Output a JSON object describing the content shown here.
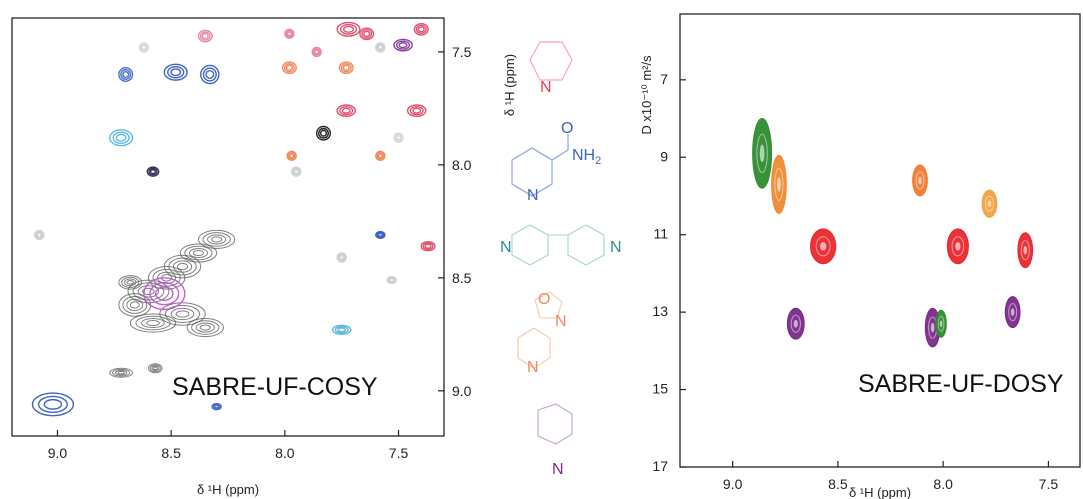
{
  "chart_data": [
    {
      "type": "contour-2d",
      "title": "SABRE-UF-COSY",
      "xlabel": "δ ¹H (ppm)",
      "ylabel": "δ ¹H (ppm)",
      "xlim": [
        9.2,
        7.3
      ],
      "ylim": [
        7.35,
        9.2
      ],
      "x_ticks": [
        9.0,
        8.5,
        8.0,
        7.5
      ],
      "y_ticks": [
        7.5,
        8.0,
        8.5,
        9.0
      ],
      "x_tick_labels": [
        "9.0",
        "8.5",
        "8.0",
        "7.5"
      ],
      "y_tick_labels": [
        "7.5",
        "8.0",
        "8.5",
        "9.0"
      ],
      "peaks": [
        {
          "x": 8.7,
          "y": 7.6,
          "color": "#4a6fc4",
          "rx": 0.03,
          "ry": 0.03
        },
        {
          "x": 8.48,
          "y": 7.59,
          "color": "#3f63c2",
          "rx": 0.05,
          "ry": 0.035
        },
        {
          "x": 8.33,
          "y": 7.6,
          "color": "#3f63c2",
          "rx": 0.04,
          "ry": 0.04
        },
        {
          "x": 8.62,
          "y": 7.48,
          "color": "#d9d9d9",
          "rx": 0.02,
          "ry": 0.02
        },
        {
          "x": 8.35,
          "y": 7.43,
          "color": "#e889a4",
          "rx": 0.03,
          "ry": 0.025
        },
        {
          "x": 7.98,
          "y": 7.42,
          "color": "#e889a4",
          "rx": 0.02,
          "ry": 0.02
        },
        {
          "x": 7.86,
          "y": 7.5,
          "color": "#e889a4",
          "rx": 0.02,
          "ry": 0.02
        },
        {
          "x": 7.72,
          "y": 7.4,
          "color": "#e0506e",
          "rx": 0.05,
          "ry": 0.03
        },
        {
          "x": 7.64,
          "y": 7.42,
          "color": "#e0506e",
          "rx": 0.03,
          "ry": 0.025
        },
        {
          "x": 7.58,
          "y": 7.48,
          "color": "#cfcfcf",
          "rx": 0.02,
          "ry": 0.02
        },
        {
          "x": 7.48,
          "y": 7.47,
          "color": "#8a3fa0",
          "rx": 0.04,
          "ry": 0.025
        },
        {
          "x": 7.4,
          "y": 7.4,
          "color": "#e0506e",
          "rx": 0.03,
          "ry": 0.025
        },
        {
          "x": 7.98,
          "y": 7.57,
          "color": "#f08a5d",
          "rx": 0.03,
          "ry": 0.025
        },
        {
          "x": 7.73,
          "y": 7.57,
          "color": "#f08a5d",
          "rx": 0.03,
          "ry": 0.025
        },
        {
          "x": 7.73,
          "y": 7.76,
          "color": "#e0506e",
          "rx": 0.04,
          "ry": 0.025
        },
        {
          "x": 7.42,
          "y": 7.76,
          "color": "#e0506e",
          "rx": 0.04,
          "ry": 0.025
        },
        {
          "x": 8.72,
          "y": 7.88,
          "color": "#5fb8e0",
          "rx": 0.05,
          "ry": 0.035
        },
        {
          "x": 7.83,
          "y": 7.86,
          "color": "#222222",
          "rx": 0.03,
          "ry": 0.03
        },
        {
          "x": 7.97,
          "y": 7.96,
          "color": "#f08a5d",
          "rx": 0.02,
          "ry": 0.02
        },
        {
          "x": 7.58,
          "y": 7.96,
          "color": "#f08a5d",
          "rx": 0.02,
          "ry": 0.02
        },
        {
          "x": 7.5,
          "y": 7.88,
          "color": "#d9d9d9",
          "rx": 0.02,
          "ry": 0.02
        },
        {
          "x": 8.58,
          "y": 8.03,
          "color": "#333355",
          "rx": 0.025,
          "ry": 0.02
        },
        {
          "x": 7.95,
          "y": 8.03,
          "color": "#d0d0d0",
          "rx": 0.02,
          "ry": 0.02
        },
        {
          "x": 9.08,
          "y": 8.31,
          "color": "#cfcfcf",
          "rx": 0.02,
          "ry": 0.02
        },
        {
          "x": 7.58,
          "y": 8.31,
          "color": "#3f63c2",
          "rx": 0.02,
          "ry": 0.015
        },
        {
          "x": 7.37,
          "y": 8.36,
          "color": "#e0506e",
          "rx": 0.03,
          "ry": 0.02
        },
        {
          "x": 7.75,
          "y": 8.41,
          "color": "#cfcfcf",
          "rx": 0.02,
          "ry": 0.02
        },
        {
          "x": 7.53,
          "y": 8.51,
          "color": "#d0d0d0",
          "rx": 0.02,
          "ry": 0.015
        },
        {
          "x": 8.53,
          "y": 8.57,
          "color": "#c75ad8",
          "rx": 0.09,
          "ry": 0.07
        },
        {
          "x": 7.75,
          "y": 8.73,
          "color": "#5fb8e0",
          "rx": 0.04,
          "ry": 0.02
        },
        {
          "x": 9.02,
          "y": 9.06,
          "color": "#3f63c2",
          "rx": 0.09,
          "ry": 0.05
        },
        {
          "x": 8.3,
          "y": 9.07,
          "color": "#4a6fc4",
          "rx": 0.02,
          "ry": 0.01
        }
      ]
    },
    {
      "type": "contour-2d",
      "title": "SABRE-UF-DOSY",
      "xlabel": "δ ¹H (ppm)",
      "ylabel": "D x10⁻¹⁰ m²/s",
      "xlim": [
        9.25,
        7.35
      ],
      "ylim": [
        5.3,
        17
      ],
      "x_ticks": [
        9.0,
        8.5,
        8.0,
        7.5
      ],
      "y_ticks": [
        7,
        9,
        11,
        13,
        15,
        17
      ],
      "x_tick_labels": [
        "9.0",
        "8.5",
        "8.0",
        "7.5"
      ],
      "y_tick_labels": [
        "7",
        "9",
        "11",
        "13",
        "15",
        "17"
      ],
      "peaks": [
        {
          "x": 8.86,
          "y": 8.9,
          "color": "#2e8b2e",
          "rx": 0.045,
          "ry": 0.9
        },
        {
          "x": 8.78,
          "y": 9.7,
          "color": "#f08a30",
          "rx": 0.035,
          "ry": 0.75
        },
        {
          "x": 8.57,
          "y": 11.3,
          "color": "#e8282e",
          "rx": 0.06,
          "ry": 0.45
        },
        {
          "x": 8.11,
          "y": 9.6,
          "color": "#f07a30",
          "rx": 0.035,
          "ry": 0.4
        },
        {
          "x": 7.78,
          "y": 10.2,
          "color": "#f5a040",
          "rx": 0.035,
          "ry": 0.35
        },
        {
          "x": 7.93,
          "y": 11.3,
          "color": "#e8282e",
          "rx": 0.05,
          "ry": 0.45
        },
        {
          "x": 7.61,
          "y": 11.4,
          "color": "#e8282e",
          "rx": 0.035,
          "ry": 0.45
        },
        {
          "x": 8.7,
          "y": 13.3,
          "color": "#7a2a8a",
          "rx": 0.04,
          "ry": 0.4
        },
        {
          "x": 8.05,
          "y": 13.4,
          "color": "#7a2a8a",
          "rx": 0.035,
          "ry": 0.5
        },
        {
          "x": 8.01,
          "y": 13.3,
          "color": "#2e8b2e",
          "rx": 0.025,
          "ry": 0.35
        },
        {
          "x": 7.67,
          "y": 13.0,
          "color": "#7a2a8a",
          "rx": 0.035,
          "ry": 0.4
        }
      ]
    }
  ],
  "structures": {
    "n_red": "N",
    "o_label": "O",
    "nh2_label": "NH",
    "nh2_sub": "2",
    "n_blue": "N",
    "n_teal_left": "N",
    "n_teal_right": "N",
    "o_orange": "O",
    "n_orange_a": "N",
    "n_orange_b": "N",
    "n_purple": "N",
    "colors": {
      "red": "#e8404a",
      "blue": "#3f63c2",
      "teal": "#2a8f8f",
      "orange": "#f08a5d",
      "purple": "#7a2a8a"
    }
  }
}
